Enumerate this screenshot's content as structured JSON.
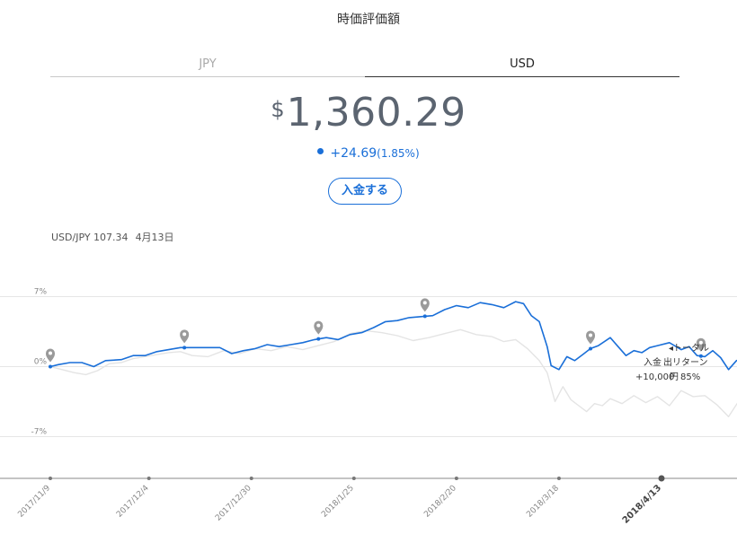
{
  "header": {
    "title": "時価評価額"
  },
  "tabs": [
    {
      "label": "JPY",
      "active": false
    },
    {
      "label": "USD",
      "active": true
    }
  ],
  "summary": {
    "currency_symbol": "$",
    "value": "1,360.29",
    "change": "+24.69",
    "change_pct": "(1.85%)"
  },
  "deposit_button": {
    "label": "入金する"
  },
  "fx": {
    "pair_rate": "USD/JPY 107.34",
    "date": "4月13日"
  },
  "colors": {
    "accent": "#1a6fd8",
    "benchmark": "#e4e4e4",
    "grid": "#e6e6e6",
    "pin": "#9a9a9a"
  },
  "annotation": {
    "total_label": "◂トータル",
    "deposit_label": "入金",
    "return_label": "出リターン",
    "deposit_value": "+10,000",
    "yen_symbol": "円",
    "return_value": "85%"
  },
  "chart_data": {
    "type": "line",
    "ylim": [
      -12,
      9
    ],
    "yticks": [
      "7%",
      "0%",
      "-7%"
    ],
    "ytick_values": [
      7,
      0,
      -7
    ],
    "x_labels": [
      "2017/11/9",
      "2017/12/4",
      "2017/12/30",
      "2018/1/25",
      "2018/2/20",
      "2018/3/18",
      "2018/4/13"
    ],
    "active_x_label": "2018/4/13",
    "x_days": [
      0,
      25,
      51,
      77,
      103,
      129,
      155
    ],
    "series": [
      {
        "role": "portfolio",
        "color": "#1a6fd8",
        "points": [
          [
            0,
            0
          ],
          [
            2,
            0.2
          ],
          [
            5,
            0.4
          ],
          [
            8,
            0.4
          ],
          [
            11,
            0
          ],
          [
            14,
            0.6
          ],
          [
            18,
            0.7
          ],
          [
            21,
            1.1
          ],
          [
            24,
            1.1
          ],
          [
            27,
            1.5
          ],
          [
            30,
            1.7
          ],
          [
            33,
            1.9
          ],
          [
            36,
            1.9
          ],
          [
            40,
            1.9
          ],
          [
            43,
            1.9
          ],
          [
            46,
            1.3
          ],
          [
            49,
            1.6
          ],
          [
            52,
            1.8
          ],
          [
            55,
            2.2
          ],
          [
            58,
            2.0
          ],
          [
            61,
            2.2
          ],
          [
            64,
            2.4
          ],
          [
            67,
            2.7
          ],
          [
            70,
            2.9
          ],
          [
            73,
            2.7
          ],
          [
            76,
            3.2
          ],
          [
            79,
            3.4
          ],
          [
            82,
            3.9
          ],
          [
            85,
            4.5
          ],
          [
            88,
            4.6
          ],
          [
            91,
            4.9
          ],
          [
            94,
            5.0
          ],
          [
            97,
            5.1
          ],
          [
            100,
            5.7
          ],
          [
            103,
            6.1
          ],
          [
            106,
            5.9
          ],
          [
            109,
            6.4
          ],
          [
            112,
            6.2
          ],
          [
            115,
            5.9
          ],
          [
            118,
            6.5
          ],
          [
            120,
            6.3
          ],
          [
            122,
            5.1
          ],
          [
            124,
            4.5
          ],
          [
            126,
            2.0
          ],
          [
            127,
            0.1
          ],
          [
            129,
            -0.3
          ],
          [
            131,
            1.0
          ],
          [
            133,
            0.6
          ],
          [
            135,
            1.2
          ],
          [
            137,
            1.8
          ],
          [
            139,
            2.1
          ],
          [
            142,
            2.9
          ],
          [
            144,
            2.0
          ],
          [
            146,
            1.1
          ],
          [
            148,
            1.6
          ],
          [
            150,
            1.4
          ],
          [
            152,
            1.9
          ],
          [
            154,
            2.1
          ],
          [
            157,
            2.4
          ],
          [
            160,
            1.7
          ],
          [
            162,
            2.0
          ],
          [
            164,
            1.1
          ],
          [
            166,
            1.0
          ],
          [
            168,
            1.6
          ],
          [
            170,
            0.9
          ],
          [
            172,
            -0.3
          ],
          [
            174,
            0.6
          ],
          [
            176,
            0.9
          ],
          [
            178,
            0.3
          ],
          [
            180,
            0.5
          ],
          [
            182,
            0.1
          ],
          [
            185,
            1.5
          ]
        ]
      },
      {
        "role": "benchmark",
        "color": "#e4e4e4",
        "points": [
          [
            0,
            0
          ],
          [
            3,
            -0.3
          ],
          [
            6,
            -0.6
          ],
          [
            9,
            -0.8
          ],
          [
            12,
            -0.4
          ],
          [
            15,
            0.3
          ],
          [
            18,
            0.4
          ],
          [
            21,
            0.8
          ],
          [
            24,
            1.0
          ],
          [
            27,
            1.2
          ],
          [
            30,
            1.4
          ],
          [
            33,
            1.5
          ],
          [
            36,
            1.1
          ],
          [
            40,
            1.0
          ],
          [
            44,
            1.6
          ],
          [
            48,
            1.3
          ],
          [
            52,
            1.8
          ],
          [
            56,
            1.6
          ],
          [
            60,
            2.0
          ],
          [
            64,
            1.7
          ],
          [
            68,
            2.1
          ],
          [
            72,
            2.5
          ],
          [
            76,
            3.3
          ],
          [
            80,
            3.6
          ],
          [
            84,
            3.4
          ],
          [
            88,
            3.1
          ],
          [
            92,
            2.6
          ],
          [
            96,
            2.9
          ],
          [
            100,
            3.3
          ],
          [
            104,
            3.7
          ],
          [
            108,
            3.2
          ],
          [
            112,
            3.0
          ],
          [
            115,
            2.5
          ],
          [
            118,
            2.7
          ],
          [
            121,
            1.8
          ],
          [
            124,
            0.6
          ],
          [
            126,
            -0.6
          ],
          [
            128,
            -3.5
          ],
          [
            130,
            -2.0
          ],
          [
            132,
            -3.3
          ],
          [
            134,
            -3.9
          ],
          [
            136,
            -4.5
          ],
          [
            138,
            -3.7
          ],
          [
            140,
            -3.9
          ],
          [
            142,
            -3.2
          ],
          [
            145,
            -3.7
          ],
          [
            148,
            -2.9
          ],
          [
            151,
            -3.6
          ],
          [
            154,
            -3.0
          ],
          [
            157,
            -3.9
          ],
          [
            160,
            -2.4
          ],
          [
            163,
            -3.0
          ],
          [
            166,
            -2.9
          ],
          [
            169,
            -3.8
          ],
          [
            172,
            -5.0
          ],
          [
            175,
            -3.2
          ],
          [
            178,
            -3.6
          ],
          [
            181,
            -2.8
          ],
          [
            185,
            -2.6
          ]
        ]
      }
    ],
    "markers_days": [
      0,
      34,
      68,
      95,
      137,
      165,
      185
    ]
  }
}
